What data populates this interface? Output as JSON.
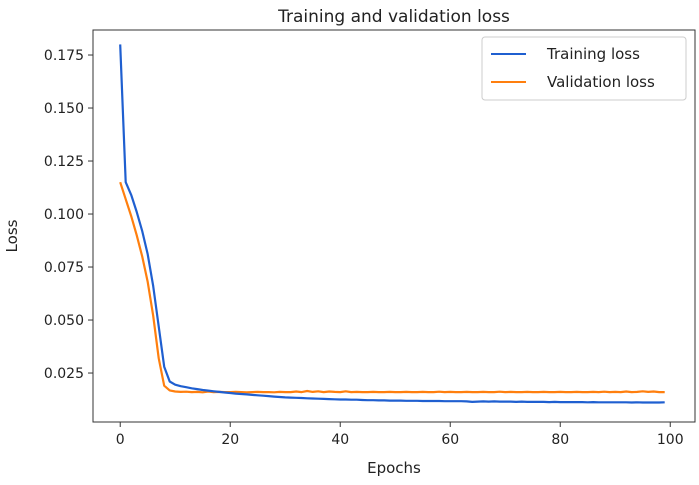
{
  "chart_data": {
    "type": "line",
    "title": "Training and validation loss",
    "xlabel": "Epochs",
    "ylabel": "Loss",
    "xlim": [
      -4.95,
      104.5
    ],
    "ylim": [
      0.0019,
      0.1868
    ],
    "xticks": [
      0,
      20,
      40,
      60,
      80,
      100
    ],
    "xtick_labels": [
      "0",
      "20",
      "40",
      "60",
      "80",
      "100"
    ],
    "yticks": [
      0.025,
      0.05,
      0.075,
      0.1,
      0.125,
      0.15,
      0.175
    ],
    "ytick_labels": [
      "0.025",
      "0.050",
      "0.075",
      "0.100",
      "0.125",
      "0.150",
      "0.175"
    ],
    "grid": false,
    "legend_position": "upper-right",
    "series": [
      {
        "name": "Training loss",
        "color": "#1f5fd0",
        "values": [
          0.18,
          0.115,
          0.109,
          0.101,
          0.092,
          0.081,
          0.066,
          0.047,
          0.028,
          0.021,
          0.0195,
          0.0188,
          0.0183,
          0.0178,
          0.0174,
          0.017,
          0.0167,
          0.0164,
          0.0161,
          0.0158,
          0.0156,
          0.0153,
          0.0151,
          0.0149,
          0.0147,
          0.0145,
          0.0143,
          0.0141,
          0.0139,
          0.0137,
          0.0135,
          0.0134,
          0.0133,
          0.0132,
          0.0131,
          0.013,
          0.0129,
          0.0128,
          0.0127,
          0.0126,
          0.0125,
          0.0125,
          0.0124,
          0.0124,
          0.0123,
          0.0122,
          0.0122,
          0.0121,
          0.0121,
          0.012,
          0.012,
          0.012,
          0.0119,
          0.0119,
          0.0119,
          0.0118,
          0.0118,
          0.0118,
          0.0118,
          0.0117,
          0.0117,
          0.0117,
          0.0117,
          0.0116,
          0.0114,
          0.0115,
          0.0116,
          0.0115,
          0.0116,
          0.0115,
          0.0115,
          0.0115,
          0.0114,
          0.0115,
          0.0114,
          0.0114,
          0.0114,
          0.0114,
          0.0113,
          0.0114,
          0.0113,
          0.0113,
          0.0113,
          0.0113,
          0.0113,
          0.0112,
          0.0113,
          0.0112,
          0.0112,
          0.0112,
          0.0112,
          0.0112,
          0.0112,
          0.0111,
          0.0112,
          0.0111,
          0.0111,
          0.0111,
          0.0111,
          0.0112
        ]
      },
      {
        "name": "Validation loss",
        "color": "#ff7f0e",
        "values": [
          0.115,
          0.107,
          0.099,
          0.09,
          0.08,
          0.068,
          0.052,
          0.032,
          0.019,
          0.0168,
          0.0163,
          0.0161,
          0.0162,
          0.016,
          0.0161,
          0.0159,
          0.0163,
          0.016,
          0.0161,
          0.016,
          0.016,
          0.0161,
          0.016,
          0.0159,
          0.016,
          0.0161,
          0.016,
          0.016,
          0.0159,
          0.0161,
          0.016,
          0.016,
          0.0163,
          0.016,
          0.0165,
          0.0161,
          0.0164,
          0.016,
          0.0163,
          0.0161,
          0.016,
          0.0164,
          0.016,
          0.0161,
          0.016,
          0.016,
          0.0161,
          0.016,
          0.016,
          0.0161,
          0.016,
          0.016,
          0.0161,
          0.016,
          0.016,
          0.0161,
          0.016,
          0.016,
          0.0162,
          0.016,
          0.0161,
          0.016,
          0.016,
          0.0161,
          0.016,
          0.016,
          0.0161,
          0.016,
          0.016,
          0.0162,
          0.016,
          0.0161,
          0.016,
          0.016,
          0.0161,
          0.016,
          0.016,
          0.0161,
          0.016,
          0.016,
          0.0161,
          0.016,
          0.016,
          0.0161,
          0.016,
          0.016,
          0.0161,
          0.016,
          0.0162,
          0.016,
          0.0161,
          0.016,
          0.0163,
          0.016,
          0.0161,
          0.0164,
          0.0161,
          0.0163,
          0.016,
          0.016
        ]
      }
    ]
  }
}
